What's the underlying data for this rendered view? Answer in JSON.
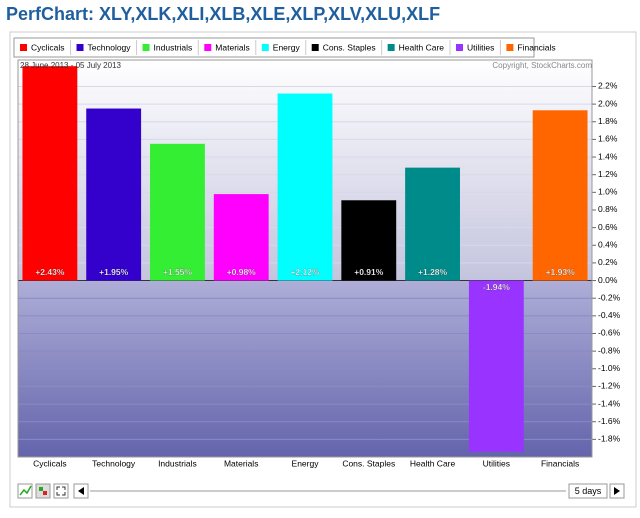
{
  "chart_data": {
    "type": "bar",
    "title": "PerfChart: XLY,XLK,XLI,XLB,XLE,XLP,XLV,XLU,XLF",
    "subtitle": "28 June 2013 - 05 July 2013",
    "annotation": "Copyright, StockCharts.com",
    "categories": [
      "Cyclicals",
      "Technology",
      "Industrials",
      "Materials",
      "Energy",
      "Cons. Staples",
      "Health Care",
      "Utilities",
      "Financials"
    ],
    "values": [
      2.43,
      1.95,
      1.55,
      0.98,
      2.12,
      0.91,
      1.28,
      -1.94,
      1.93
    ],
    "value_labels": [
      "+2.43%",
      "+1.95%",
      "+1.55%",
      "+0.98%",
      "+2.12%",
      "+0.91%",
      "+1.28%",
      "-1.94%",
      "+1.93%"
    ],
    "colors": [
      "#ff0000",
      "#3300cc",
      "#33ee33",
      "#ff00ff",
      "#00ffff",
      "#000000",
      "#008b8b",
      "#9933ff",
      "#ff6600"
    ],
    "ylim": [
      -2.0,
      2.5
    ],
    "yticks": [
      {
        "value": -1.8,
        "label": "-1.8%"
      },
      {
        "value": -1.6,
        "label": "-1.6%"
      },
      {
        "value": -1.4,
        "label": "-1.4%"
      },
      {
        "value": -1.2,
        "label": "-1.2%"
      },
      {
        "value": -1.0,
        "label": "-1.0%"
      },
      {
        "value": -0.8,
        "label": "-0.8%"
      },
      {
        "value": -0.6,
        "label": "-0.6%"
      },
      {
        "value": -0.4,
        "label": "-0.4%"
      },
      {
        "value": -0.2,
        "label": "-0.2%"
      },
      {
        "value": 0,
        "label": "0.0%"
      },
      {
        "value": 0.2,
        "label": "0.2%"
      },
      {
        "value": 0.4,
        "label": "0.4%"
      },
      {
        "value": 0.6,
        "label": "0.6%"
      },
      {
        "value": 0.8,
        "label": "0.8%"
      },
      {
        "value": 1.0,
        "label": "1.0%"
      },
      {
        "value": 1.2,
        "label": "1.2%"
      },
      {
        "value": 1.4,
        "label": "1.4%"
      },
      {
        "value": 1.6,
        "label": "1.6%"
      },
      {
        "value": 1.8,
        "label": "1.8%"
      },
      {
        "value": 2.0,
        "label": "2.0%"
      },
      {
        "value": 2.2,
        "label": "2.2%"
      }
    ],
    "grid": true,
    "legend": "top-left"
  },
  "controls": {
    "period": "5 days"
  }
}
